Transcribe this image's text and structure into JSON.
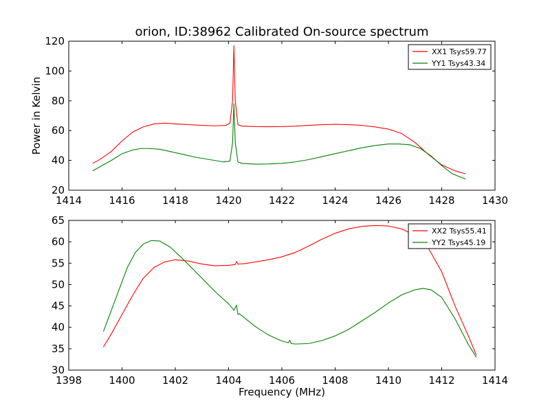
{
  "figure": {
    "title": "orion, ID:38962 Calibrated On-source spectrum"
  },
  "chart_data": [
    {
      "type": "line",
      "title": "orion, ID:38962 Calibrated On-source spectrum",
      "xlabel": "",
      "ylabel": "Power in Kelvin",
      "xlim": [
        1414,
        1430
      ],
      "ylim": [
        20,
        120
      ],
      "xticks": [
        1414,
        1416,
        1418,
        1420,
        1422,
        1424,
        1426,
        1428,
        1430
      ],
      "yticks": [
        20,
        40,
        60,
        80,
        100,
        120
      ],
      "grid": false,
      "legend_position": "top-right",
      "series": [
        {
          "name": "XX1 Tsys59.77",
          "color": "#ff0000",
          "x": [
            1414.9,
            1415.2,
            1415.6,
            1416.0,
            1416.4,
            1416.8,
            1417.2,
            1417.6,
            1418.0,
            1418.5,
            1419.0,
            1419.5,
            1419.9,
            1420.05,
            1420.15,
            1420.2,
            1420.25,
            1420.35,
            1420.5,
            1421.0,
            1421.5,
            1422.0,
            1422.5,
            1423.0,
            1423.5,
            1424.0,
            1424.5,
            1425.0,
            1425.5,
            1426.0,
            1426.5,
            1427.0,
            1427.5,
            1428.0,
            1428.5,
            1428.9
          ],
          "y": [
            38,
            41,
            46,
            53,
            59,
            62.5,
            64.5,
            65,
            64.5,
            64,
            63.5,
            63.2,
            63.5,
            65,
            80,
            117,
            80,
            64,
            63,
            62.7,
            62.6,
            62.7,
            63,
            63.5,
            64,
            64.2,
            64,
            63.5,
            62.5,
            61,
            58,
            52,
            44,
            37,
            33,
            31
          ]
        },
        {
          "name": "YY1 Tsys43.34",
          "color": "#008000",
          "x": [
            1414.9,
            1415.2,
            1415.6,
            1416.0,
            1416.4,
            1416.7,
            1417.0,
            1417.4,
            1417.8,
            1418.3,
            1418.8,
            1419.3,
            1419.8,
            1420.05,
            1420.15,
            1420.2,
            1420.25,
            1420.35,
            1420.5,
            1421.0,
            1421.5,
            1422.0,
            1422.5,
            1423.0,
            1423.5,
            1424.0,
            1424.5,
            1425.0,
            1425.5,
            1426.0,
            1426.4,
            1426.8,
            1427.2,
            1427.6,
            1428.0,
            1428.4,
            1428.9
          ],
          "y": [
            33,
            36,
            40,
            44.5,
            47,
            48,
            48,
            47.5,
            46,
            44,
            42,
            40.5,
            39,
            39.5,
            52,
            78,
            52,
            39,
            38,
            37.5,
            37.6,
            38,
            39,
            40.5,
            42.5,
            44.5,
            46.5,
            48.5,
            50,
            51,
            51,
            50.5,
            48,
            43,
            36.5,
            31,
            27.5
          ]
        }
      ]
    },
    {
      "type": "line",
      "title": "",
      "xlabel": "Frequency (MHz)",
      "ylabel": "",
      "xlim": [
        1398,
        1414
      ],
      "ylim": [
        30,
        65
      ],
      "xticks": [
        1398,
        1400,
        1402,
        1404,
        1406,
        1408,
        1410,
        1412,
        1414
      ],
      "yticks": [
        30,
        35,
        40,
        45,
        50,
        55,
        60,
        65
      ],
      "grid": false,
      "legend_position": "top-right",
      "series": [
        {
          "name": "XX2 Tsys55.41",
          "color": "#ff0000",
          "x": [
            1399.3,
            1399.6,
            1400.0,
            1400.4,
            1400.8,
            1401.2,
            1401.6,
            1402.0,
            1402.5,
            1403.0,
            1403.5,
            1404.0,
            1404.25,
            1404.3,
            1404.35,
            1404.6,
            1405.0,
            1405.5,
            1406.0,
            1406.5,
            1407.0,
            1407.5,
            1408.0,
            1408.5,
            1409.0,
            1409.5,
            1410.0,
            1410.5,
            1411.0,
            1411.5,
            1412.0,
            1412.5,
            1413.0,
            1413.3
          ],
          "y": [
            35.4,
            38.5,
            43,
            47.5,
            51.5,
            54,
            55.3,
            55.8,
            55.5,
            54.8,
            54.4,
            54.5,
            54.7,
            55.4,
            54.8,
            54.9,
            55.3,
            55.8,
            56.5,
            57.5,
            59,
            60.6,
            62,
            63,
            63.6,
            63.8,
            63.7,
            63,
            61.5,
            58.5,
            53,
            45,
            38,
            33.5
          ]
        },
        {
          "name": "YY2 Tsys45.19",
          "color": "#008000",
          "x": [
            1399.3,
            1399.6,
            1399.9,
            1400.2,
            1400.5,
            1400.8,
            1401.1,
            1401.4,
            1401.8,
            1402.2,
            1402.6,
            1403.0,
            1403.5,
            1404.0,
            1404.2,
            1404.3,
            1404.35,
            1404.4,
            1405.0,
            1405.5,
            1406.0,
            1406.25,
            1406.3,
            1406.35,
            1406.5,
            1407.0,
            1407.5,
            1408.0,
            1408.5,
            1409.0,
            1409.5,
            1410.0,
            1410.5,
            1411.0,
            1411.3,
            1411.6,
            1412.0,
            1412.5,
            1413.0,
            1413.3
          ],
          "y": [
            39,
            44,
            49,
            54,
            57.5,
            59.5,
            60.3,
            60.2,
            58.8,
            56.5,
            54,
            51.5,
            48.3,
            45.5,
            44,
            45.2,
            43,
            43.2,
            40.2,
            38.2,
            36.8,
            36.4,
            37,
            36.2,
            36.1,
            36.2,
            36.9,
            38,
            39.5,
            41.5,
            43.5,
            45.7,
            47.6,
            48.8,
            49.1,
            48.8,
            47,
            42,
            36,
            33
          ]
        }
      ]
    }
  ]
}
